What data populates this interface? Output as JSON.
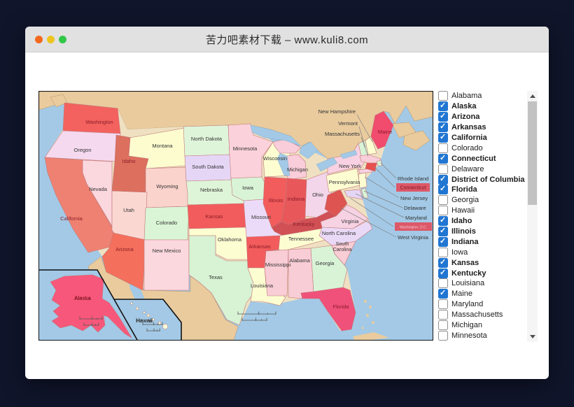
{
  "window": {
    "title": "苦力吧素材下载 – www.kuli8.com",
    "traffic_lights": {
      "close": "#f2691e",
      "minimize": "#edc51f",
      "maximize": "#33c748"
    }
  },
  "map": {
    "colors": {
      "ocean": "#a3c9e6",
      "foreign_land": "#e9cb9e",
      "border_stroke": "#c07878",
      "selected_label": "#8a1c28",
      "label": "#333333",
      "leader_line": "#808080",
      "highlight_box": "#dd5868"
    },
    "states": [
      {
        "name": "Washington",
        "fill": "#f3625e",
        "selected": true
      },
      {
        "name": "Oregon",
        "fill": "#f5d9ef",
        "selected": false
      },
      {
        "name": "California",
        "fill": "#ef8172",
        "selected": true
      },
      {
        "name": "Nevada",
        "fill": "#fbd7de",
        "selected": false
      },
      {
        "name": "Idaho",
        "fill": "#dc6f5e",
        "selected": true
      },
      {
        "name": "Montana",
        "fill": "#fcfccf",
        "selected": false
      },
      {
        "name": "Wyoming",
        "fill": "#fad3cc",
        "selected": false
      },
      {
        "name": "Utah",
        "fill": "#fbd7d2",
        "selected": false
      },
      {
        "name": "Colorado",
        "fill": "#d9f5d5",
        "selected": false
      },
      {
        "name": "Arizona",
        "fill": "#f4705c",
        "selected": true
      },
      {
        "name": "New Mexico",
        "fill": "#fbd8de",
        "selected": false
      },
      {
        "name": "North Dakota",
        "fill": "#dff5da",
        "selected": false
      },
      {
        "name": "South Dakota",
        "fill": "#e6d6f6",
        "selected": false
      },
      {
        "name": "Nebraska",
        "fill": "#dff5d8",
        "selected": false
      },
      {
        "name": "Kansas",
        "fill": "#f25c5c",
        "selected": true
      },
      {
        "name": "Oklahoma",
        "fill": "#fdfdd2",
        "selected": false
      },
      {
        "name": "Texas",
        "fill": "#d8f2d4",
        "selected": false
      },
      {
        "name": "Minnesota",
        "fill": "#fbd2db",
        "selected": false
      },
      {
        "name": "Iowa",
        "fill": "#d9f3d7",
        "selected": false
      },
      {
        "name": "Missouri",
        "fill": "#ecdbf8",
        "selected": false
      },
      {
        "name": "Arkansas",
        "fill": "#f25c5c",
        "selected": true
      },
      {
        "name": "Louisiana",
        "fill": "#fdfdd2",
        "selected": false
      },
      {
        "name": "Wisconsin",
        "fill": "#fdfdd2",
        "selected": false
      },
      {
        "name": "Illinois",
        "fill": "#f25c5c",
        "selected": true
      },
      {
        "name": "Michigan",
        "fill": "#f9cdd9",
        "selected": false
      },
      {
        "name": "Indiana",
        "fill": "#e8585a",
        "selected": true
      },
      {
        "name": "Ohio",
        "fill": "#f3d6ea",
        "selected": false
      },
      {
        "name": "Kentucky",
        "fill": "#d15055",
        "selected": true
      },
      {
        "name": "Tennessee",
        "fill": "#fdfdd2",
        "selected": false
      },
      {
        "name": "Mississippi",
        "fill": "#f9cdd6",
        "selected": false
      },
      {
        "name": "Alabama",
        "fill": "#f9cdd6",
        "selected": false
      },
      {
        "name": "Georgia",
        "fill": "#d9f3d7",
        "selected": false
      },
      {
        "name": "Florida",
        "fill": "#f0517b",
        "selected": true
      },
      {
        "name": "South Carolina",
        "fill": "#f9cdd6",
        "selected": false
      },
      {
        "name": "North Carolina",
        "fill": "#ead9f6",
        "selected": false
      },
      {
        "name": "Virginia",
        "fill": "#f6d2e2",
        "selected": false
      },
      {
        "name": "West Virginia",
        "fill": "#dd5451",
        "selected": true
      },
      {
        "name": "Pennsylvania",
        "fill": "#fdfdd2",
        "selected": false
      },
      {
        "name": "New York",
        "fill": "#f8d2e2",
        "selected": false
      },
      {
        "name": "Vermont",
        "fill": "#d9f3d7",
        "selected": false
      },
      {
        "name": "New Hampshire",
        "fill": "#fdfdd2",
        "selected": false
      },
      {
        "name": "Maine",
        "fill": "#f14b6e",
        "selected": true
      },
      {
        "name": "Massachusetts",
        "fill": "#f9cdd9",
        "selected": false
      },
      {
        "name": "Rhode Island",
        "fill": "#d9f3d7",
        "selected": false
      },
      {
        "name": "Connecticut",
        "fill": "#e85050",
        "selected": true
      },
      {
        "name": "New Jersey",
        "fill": "#fdfdd2",
        "selected": false
      },
      {
        "name": "Delaware",
        "fill": "#d9f3d7",
        "selected": false
      },
      {
        "name": "Maryland",
        "fill": "#e6d6f6",
        "selected": false
      },
      {
        "name": "Alaska",
        "fill": "#f7577b",
        "selected": true
      },
      {
        "name": "Hawaii",
        "fill": "#fbfbd8",
        "selected": false
      }
    ],
    "leader_labels": [
      {
        "text": "New Hampshire",
        "box": false
      },
      {
        "text": "Vermont",
        "box": false
      },
      {
        "text": "Massachusetts",
        "box": false
      },
      {
        "text": "Rhode Island",
        "box": false
      },
      {
        "text": "Connecticut",
        "box": true
      },
      {
        "text": "New Jersey",
        "box": false
      },
      {
        "text": "Delaware",
        "box": false
      },
      {
        "text": "Maryland",
        "box": false
      },
      {
        "text": "Washington, D.C.",
        "box": true
      },
      {
        "text": "West Virginia",
        "box": false
      }
    ],
    "inset_labels": [
      {
        "text": "Alaska"
      },
      {
        "text": "Hawaii"
      }
    ]
  },
  "state_list": {
    "items": [
      {
        "label": "Alabama",
        "checked": false,
        "bold": false
      },
      {
        "label": "Alaska",
        "checked": true,
        "bold": true
      },
      {
        "label": "Arizona",
        "checked": true,
        "bold": true
      },
      {
        "label": "Arkansas",
        "checked": true,
        "bold": true
      },
      {
        "label": "California",
        "checked": true,
        "bold": true
      },
      {
        "label": "Colorado",
        "checked": false,
        "bold": false
      },
      {
        "label": "Connecticut",
        "checked": true,
        "bold": true
      },
      {
        "label": "Delaware",
        "checked": false,
        "bold": false
      },
      {
        "label": "District of Columbia",
        "checked": true,
        "bold": true
      },
      {
        "label": "Florida",
        "checked": true,
        "bold": true
      },
      {
        "label": "Georgia",
        "checked": false,
        "bold": false
      },
      {
        "label": "Hawaii",
        "checked": false,
        "bold": false
      },
      {
        "label": "Idaho",
        "checked": true,
        "bold": true
      },
      {
        "label": "Illinois",
        "checked": true,
        "bold": true
      },
      {
        "label": "Indiana",
        "checked": true,
        "bold": true
      },
      {
        "label": "Iowa",
        "checked": false,
        "bold": false
      },
      {
        "label": "Kansas",
        "checked": true,
        "bold": true
      },
      {
        "label": "Kentucky",
        "checked": true,
        "bold": true
      },
      {
        "label": "Louisiana",
        "checked": false,
        "bold": false
      },
      {
        "label": "Maine",
        "checked": true,
        "bold": false
      },
      {
        "label": "Maryland",
        "checked": false,
        "bold": false
      },
      {
        "label": "Massachusetts",
        "checked": false,
        "bold": false
      },
      {
        "label": "Michigan",
        "checked": false,
        "bold": false
      },
      {
        "label": "Minnesota",
        "checked": false,
        "bold": false
      }
    ]
  }
}
